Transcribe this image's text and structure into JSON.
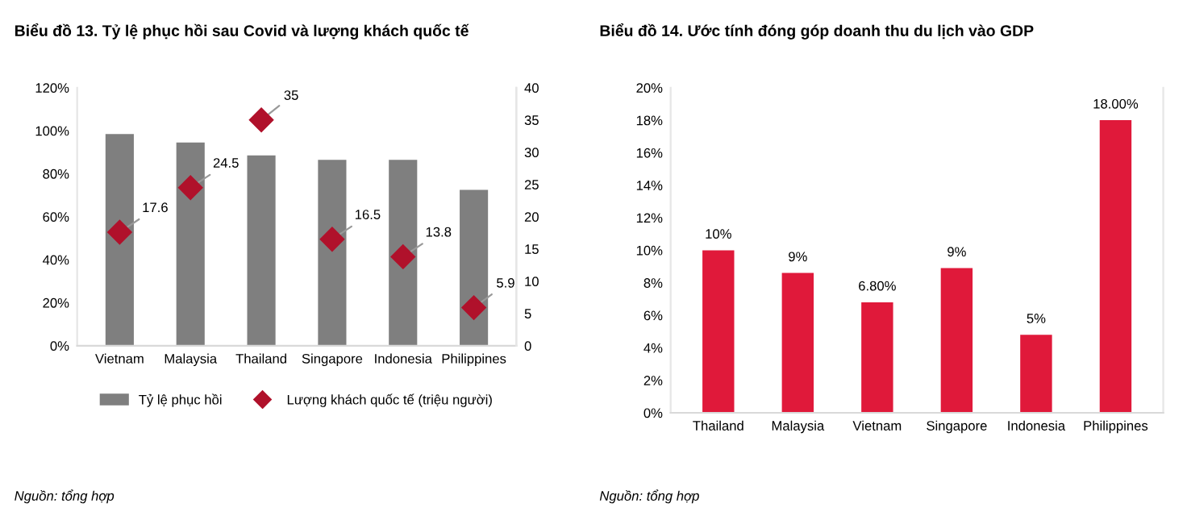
{
  "chart_data": [
    {
      "type": "bar",
      "title": "Biểu đồ 13. Tỷ lệ phục hồi sau Covid và lượng khách quốc tế",
      "categories": [
        "Vietnam",
        "Malaysia",
        "Thailand",
        "Singapore",
        "Indonesia",
        "Philippines"
      ],
      "series": [
        {
          "name": "Tỷ lệ phục hồi",
          "type": "bar",
          "color": "#7f7f7f",
          "values": [
            98.5,
            94.5,
            88.5,
            86.5,
            86.5,
            72.5
          ]
        },
        {
          "name": "Lượng khách quốc tế (triệu người)",
          "type": "scatter",
          "axis": "y2",
          "color": "#b0112b",
          "marker": "diamond",
          "data_labels": true,
          "values": [
            17.6,
            24.5,
            35,
            16.5,
            13.8,
            5.9
          ]
        }
      ],
      "ylim": [
        0,
        120
      ],
      "yticks": [
        {
          "value": 0,
          "label": "0%"
        },
        {
          "value": 20,
          "label": "20%"
        },
        {
          "value": 40,
          "label": "40%"
        },
        {
          "value": 60,
          "label": "60%"
        },
        {
          "value": 80,
          "label": "80%"
        },
        {
          "value": 100,
          "label": "100%"
        },
        {
          "value": 120,
          "label": "120%"
        }
      ],
      "y2lim": [
        0,
        40
      ],
      "y2ticks": [
        0,
        5,
        10,
        15,
        20,
        25,
        30,
        35,
        40
      ],
      "legend": "bottom",
      "grid": false,
      "annotations": [
        "Nguồn: tổng hợp"
      ]
    },
    {
      "type": "bar",
      "title": "Biểu đồ 14. Ước tính đóng góp doanh thu du lịch vào GDP",
      "categories": [
        "Thailand",
        "Malaysia",
        "Vietnam",
        "Singapore",
        "Indonesia",
        "Philippines"
      ],
      "series": [
        {
          "color": "#e0193a",
          "values": [
            10,
            8.6,
            6.8,
            8.9,
            4.8,
            18
          ],
          "value_labels": [
            "10%",
            "9%",
            "6.80%",
            "9%",
            "5%",
            "18.00%"
          ]
        }
      ],
      "ylim": [
        0,
        20
      ],
      "yticks": [
        {
          "value": 0,
          "label": "0%"
        },
        {
          "value": 2,
          "label": "2%"
        },
        {
          "value": 4,
          "label": "4%"
        },
        {
          "value": 6,
          "label": "6%"
        },
        {
          "value": 8,
          "label": "8%"
        },
        {
          "value": 10,
          "label": "10%"
        },
        {
          "value": 12,
          "label": "12%"
        },
        {
          "value": 14,
          "label": "14%"
        },
        {
          "value": 16,
          "label": "16%"
        },
        {
          "value": 18,
          "label": "18%"
        },
        {
          "value": 20,
          "label": "20%"
        }
      ],
      "legend": false,
      "grid": false,
      "annotations": [
        "Nguồn: tổng hợp"
      ]
    }
  ]
}
